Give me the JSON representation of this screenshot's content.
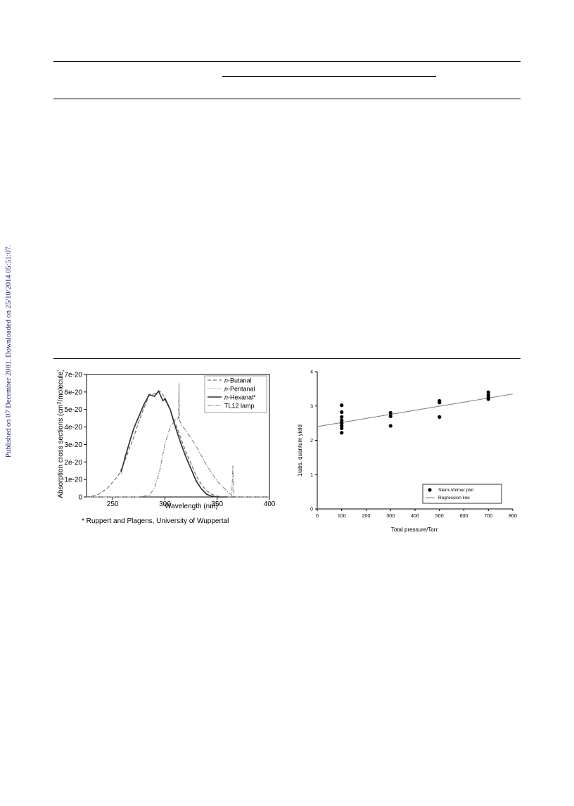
{
  "side_note": "Published on 07 December 2001. Downloaded on 25/10/2014 05:51:07.",
  "colors": {
    "text": "#000000",
    "side_note": "#1a237e",
    "curve": "#555555",
    "lamp": "#777777"
  },
  "chart_data": [
    {
      "type": "line",
      "xlabel": "Wavelength (nm)",
      "ylabel": "Absorption cross sections (cm",
      "ylabel_sup": "2",
      "ylabel_tail": "/molecule)",
      "xlim": [
        225,
        400
      ],
      "ylim": [
        0,
        7e-20
      ],
      "x_ticks": [
        250,
        300,
        350,
        400
      ],
      "y_ticks": [
        "0",
        "1e-20",
        "2e-20",
        "3e-20",
        "4e-20",
        "5e-20",
        "6e-20",
        "7e-20"
      ],
      "footnote": "* Ruppert and Plagens, University of Wuppertal",
      "legend_position": "top-right",
      "legend": [
        {
          "prefix": "n",
          "name": "-Butanal",
          "style": "dashed"
        },
        {
          "prefix": "n",
          "name": "-Pentanal",
          "style": "dotted"
        },
        {
          "prefix": "n",
          "name": "-Hexanal*",
          "style": "solid"
        },
        {
          "prefix": "",
          "name": "TL12 lamp",
          "style": "dashdot"
        }
      ],
      "series": [
        {
          "x": [
            225,
            235,
            245,
            255,
            260,
            265,
            270,
            275,
            280,
            285,
            290,
            295,
            300,
            305,
            310,
            315,
            320,
            325,
            330,
            335,
            340,
            345,
            350,
            355,
            360,
            365
          ],
          "y": [
            0,
            1e-21,
            5e-21,
            1.2e-20,
            1.8e-20,
            2.6e-20,
            3.4e-20,
            4.3e-20,
            5.1e-20,
            5.8e-20,
            5.9e-20,
            6.05e-20,
            5.7e-20,
            5e-20,
            4.2e-20,
            3.4e-20,
            2.6e-20,
            1.9e-20,
            1.2e-20,
            7e-21,
            3.5e-21,
            1.5e-21,
            5e-22,
            0,
            0,
            0
          ]
        },
        {
          "x": [
            258,
            262,
            266,
            270,
            275,
            280,
            285,
            290,
            294,
            298,
            300,
            305,
            310,
            315,
            320,
            325,
            330,
            335,
            340,
            345,
            350,
            355,
            360
          ],
          "y": [
            1.3e-20,
            2.2e-20,
            3e-20,
            3.8e-20,
            4.5e-20,
            5.2e-20,
            5.9e-20,
            5.8e-20,
            6.1e-20,
            5.5e-20,
            5.7e-20,
            5.1e-20,
            4.1e-20,
            3.2e-20,
            2.4e-20,
            1.7e-20,
            1e-20,
            5e-21,
            2e-21,
            5e-22,
            0,
            0,
            0
          ]
        },
        {
          "x": [
            258,
            262,
            266,
            270,
            275,
            280,
            285,
            290,
            294,
            298,
            300,
            305,
            310,
            315,
            320,
            325,
            330,
            335,
            340,
            345,
            350,
            355,
            360
          ],
          "y": [
            1.4e-20,
            2.3e-20,
            3.1e-20,
            3.9e-20,
            4.6e-20,
            5.3e-20,
            5.85e-20,
            5.75e-20,
            6.05e-20,
            5.5e-20,
            5.6e-20,
            5e-20,
            4e-20,
            3.1e-20,
            2.3e-20,
            1.6e-20,
            9e-21,
            4.5e-21,
            1.5e-21,
            4e-22,
            0,
            0,
            0
          ]
        },
        {
          "x": [
            225,
            275,
            285,
            290,
            295,
            300,
            305,
            310,
            313,
            313.5,
            314,
            316,
            320,
            330,
            340,
            350,
            360,
            364,
            365,
            366,
            368,
            375,
            400
          ],
          "y": [
            0,
            0,
            1e-21,
            5e-21,
            1.5e-20,
            3e-20,
            4e-20,
            4.4e-20,
            4.5e-20,
            6.5e-20,
            4.4e-20,
            4.1e-20,
            3.8e-20,
            2.9e-20,
            1.8e-20,
            9e-21,
            3e-21,
            1e-21,
            1.8e-20,
            5e-22,
            0,
            0,
            0
          ]
        }
      ]
    },
    {
      "type": "scatter",
      "xlabel": "Total pressure/Torr",
      "ylabel": "1/abs. quantum yield",
      "xlim": [
        0,
        800
      ],
      "ylim": [
        0,
        4
      ],
      "x_ticks": [
        "0",
        "100",
        "200",
        "300",
        "400",
        "500",
        "600",
        "700",
        "800"
      ],
      "y_ticks": [
        "0",
        "1",
        "2",
        "3",
        "4"
      ],
      "legend_position": "bottom-right",
      "legend": [
        "Stern-Volmer plot",
        "Regression line"
      ],
      "series": [
        {
          "name": "Stern-Volmer plot",
          "x": [
            100,
            100,
            100,
            100,
            100,
            100,
            100,
            100,
            300,
            300,
            300,
            500,
            500,
            500,
            700,
            700,
            700,
            700
          ],
          "y": [
            3.02,
            2.82,
            2.68,
            2.58,
            2.5,
            2.42,
            2.35,
            2.22,
            2.8,
            2.7,
            2.42,
            3.15,
            3.1,
            2.68,
            3.4,
            3.32,
            3.25,
            3.2
          ]
        }
      ],
      "regression": {
        "x": [
          0,
          800
        ],
        "y": [
          2.4,
          3.35
        ]
      }
    }
  ]
}
